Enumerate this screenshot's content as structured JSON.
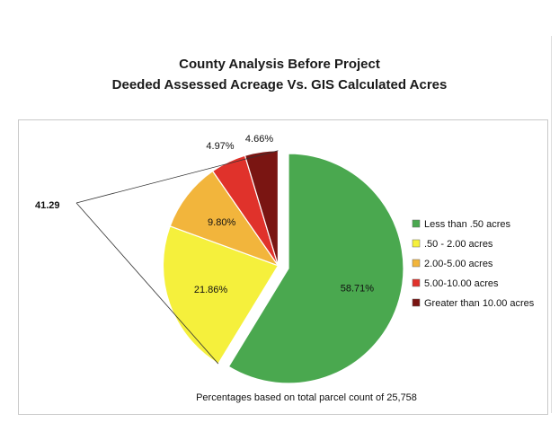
{
  "chart_data": {
    "type": "pie",
    "title": "County Analysis Before Project",
    "subtitle": "Deeded Assessed Acreage Vs. GIS Calculated Acres",
    "footnote": "Percentages based on total parcel count of 25,758",
    "callout_value": "41.29",
    "legend_placement": "right",
    "slices": [
      {
        "name": "Less than .50 acres",
        "value": 58.71,
        "label": "58.71%",
        "color": "#4aa84f"
      },
      {
        "name": ".50 - 2.00 acres",
        "value": 21.86,
        "label": "21.86%",
        "color": "#f5f03c"
      },
      {
        "name": "2.00-5.00 acres",
        "value": 9.8,
        "label": "9.80%",
        "color": "#f2b53c"
      },
      {
        "name": "5.00-10.00 acres",
        "value": 4.97,
        "label": "4.97%",
        "color": "#e0322b"
      },
      {
        "name": "Greater than 10.00 acres",
        "value": 4.66,
        "label": "4.66%",
        "color": "#7a1512"
      }
    ]
  }
}
